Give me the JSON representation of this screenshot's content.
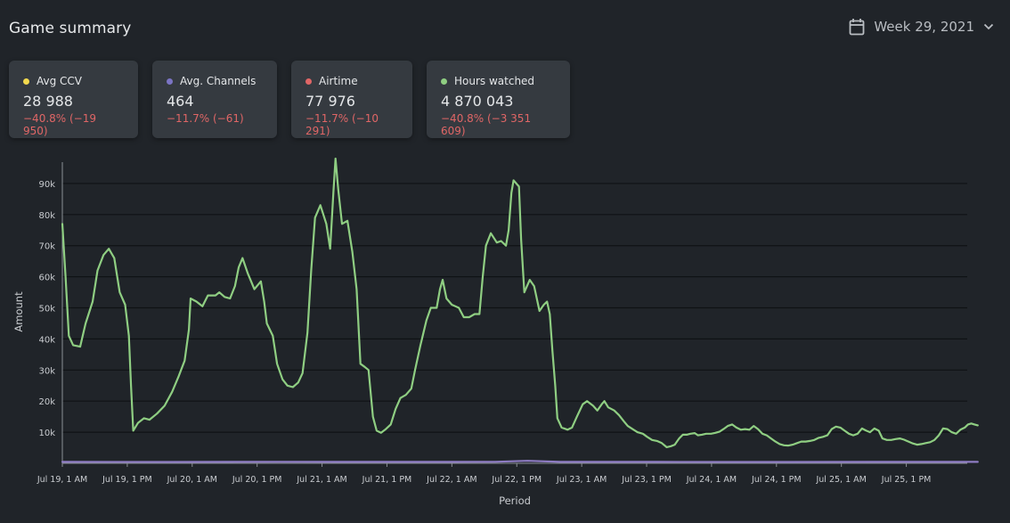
{
  "header": {
    "title": "Game summary",
    "week_label": "Week 29, 2021",
    "calendar_icon": "calendar-icon",
    "chevron_icon": "chevron-down-icon"
  },
  "cards": [
    {
      "label": "Avg CCV",
      "value": "28 988",
      "delta": "−40.8% (−19 950)",
      "dot_color": "#f2d94e"
    },
    {
      "label": "Avg. Channels",
      "value": "464",
      "delta": "−11.7% (−61)",
      "dot_color": "#7b74c4"
    },
    {
      "label": "Airtime",
      "value": "77 976",
      "delta": "−11.7% (−10 291)",
      "dot_color": "#e06666"
    },
    {
      "label": "Hours watched",
      "value": "4 870 043",
      "delta": "−40.8% (−3 351 609)",
      "dot_color": "#8fce82"
    }
  ],
  "colors": {
    "background": "#202429",
    "card": "#353a40",
    "negative": "#e06666",
    "line_hours": "#8fce82",
    "line_channels": "#8e7cc3",
    "grid": "#0f1215"
  },
  "chart_data": {
    "type": "line",
    "xlabel": "Period",
    "ylabel": "Amount",
    "ylim": [
      0,
      98000
    ],
    "yticks": [
      10000,
      20000,
      30000,
      40000,
      50000,
      60000,
      70000,
      80000,
      90000
    ],
    "ytick_labels": [
      "10k",
      "20k",
      "30k",
      "40k",
      "50k",
      "60k",
      "70k",
      "80k",
      "90k"
    ],
    "x_unit": "hour",
    "xlim": [
      0,
      168
    ],
    "xticks": [
      0,
      12,
      24,
      36,
      48,
      60,
      72,
      84,
      96,
      108,
      120,
      132,
      144,
      156
    ],
    "xtick_labels": [
      "Jul 19, 1 AM",
      "Jul 19, 1 PM",
      "Jul 20, 1 AM",
      "Jul 20, 1 PM",
      "Jul 21, 1 AM",
      "Jul 21, 1 PM",
      "Jul 22, 1 AM",
      "Jul 22, 1 PM",
      "Jul 23, 1 AM",
      "Jul 23, 1 PM",
      "Jul 24, 1 AM",
      "Jul 24, 1 PM",
      "Jul 25, 1 AM",
      "Jul 25, 1 PM"
    ],
    "grid": true,
    "series": [
      {
        "color": "#8fce82",
        "points": [
          [
            0,
            77000
          ],
          [
            0.6,
            60000
          ],
          [
            1.2,
            41000
          ],
          [
            2,
            38000
          ],
          [
            3.3,
            37500
          ],
          [
            4.3,
            45000
          ],
          [
            5.6,
            52000
          ],
          [
            6.5,
            62000
          ],
          [
            7.6,
            67000
          ],
          [
            8.6,
            69000
          ],
          [
            9.6,
            66000
          ],
          [
            10.6,
            55000
          ],
          [
            11.6,
            51000
          ],
          [
            12.3,
            41000
          ],
          [
            12.7,
            25000
          ],
          [
            13.1,
            10500
          ],
          [
            14,
            13000
          ],
          [
            15.1,
            14500
          ],
          [
            16.1,
            14000
          ],
          [
            17.5,
            16000
          ],
          [
            18.9,
            18500
          ],
          [
            20.3,
            23000
          ],
          [
            21.5,
            28000
          ],
          [
            22.6,
            33000
          ],
          [
            23.4,
            43000
          ],
          [
            23.7,
            53000
          ],
          [
            24.8,
            52000
          ],
          [
            25.9,
            50500
          ],
          [
            26.9,
            54000
          ],
          [
            28.3,
            54000
          ],
          [
            29,
            55000
          ],
          [
            30,
            53500
          ],
          [
            31,
            53000
          ],
          [
            31.9,
            57000
          ],
          [
            32.6,
            63000
          ],
          [
            33.3,
            66000
          ],
          [
            34.3,
            61000
          ],
          [
            35.5,
            56000
          ],
          [
            36.7,
            58500
          ],
          [
            37.3,
            52000
          ],
          [
            37.8,
            45000
          ],
          [
            38.9,
            41000
          ],
          [
            39.7,
            32000
          ],
          [
            40.7,
            27000
          ],
          [
            41.6,
            25000
          ],
          [
            42.6,
            24500
          ],
          [
            43.6,
            26000
          ],
          [
            44.4,
            29000
          ],
          [
            45.3,
            42000
          ],
          [
            46,
            62000
          ],
          [
            46.7,
            79000
          ],
          [
            47.7,
            83000
          ],
          [
            48.8,
            77000
          ],
          [
            49.5,
            69000
          ],
          [
            50.1,
            87000
          ],
          [
            50.5,
            98000
          ],
          [
            51,
            88000
          ],
          [
            51.7,
            77000
          ],
          [
            52.7,
            78000
          ],
          [
            53.6,
            68000
          ],
          [
            54.4,
            56000
          ],
          [
            55.1,
            32000
          ],
          [
            55.9,
            31000
          ],
          [
            56.6,
            30000
          ],
          [
            57.4,
            15000
          ],
          [
            58.1,
            10500
          ],
          [
            58.9,
            9800
          ],
          [
            59.8,
            11000
          ],
          [
            60.7,
            12500
          ],
          [
            61.6,
            17500
          ],
          [
            62.5,
            21000
          ],
          [
            63.5,
            22000
          ],
          [
            64.5,
            24000
          ],
          [
            65.2,
            30000
          ],
          [
            66.2,
            38000
          ],
          [
            67.3,
            46000
          ],
          [
            68.1,
            50000
          ],
          [
            69.2,
            50000
          ],
          [
            69.8,
            56000
          ],
          [
            70.3,
            59000
          ],
          [
            71,
            53000
          ],
          [
            72,
            51000
          ],
          [
            73.3,
            50000
          ],
          [
            74.2,
            47000
          ],
          [
            75.2,
            47000
          ],
          [
            76.2,
            48000
          ],
          [
            77.1,
            48000
          ],
          [
            77.7,
            60000
          ],
          [
            78.3,
            70000
          ],
          [
            79.2,
            74000
          ],
          [
            80.3,
            71000
          ],
          [
            81.1,
            71500
          ],
          [
            82,
            70000
          ],
          [
            82.5,
            75000
          ],
          [
            83,
            87000
          ],
          [
            83.4,
            91000
          ],
          [
            84.4,
            89000
          ],
          [
            84.8,
            72000
          ],
          [
            85.4,
            55000
          ],
          [
            86.4,
            59000
          ],
          [
            87.2,
            57000
          ],
          [
            88.2,
            49000
          ],
          [
            89,
            51000
          ],
          [
            89.6,
            52000
          ],
          [
            90.1,
            48000
          ],
          [
            90.6,
            36000
          ],
          [
            91.1,
            25000
          ],
          [
            91.5,
            14500
          ],
          [
            92.3,
            11500
          ],
          [
            93.4,
            10800
          ],
          [
            94.2,
            11500
          ],
          [
            95.1,
            15000
          ],
          [
            96.2,
            19000
          ],
          [
            97,
            20000
          ],
          [
            98.1,
            18500
          ],
          [
            98.9,
            17000
          ],
          [
            99.7,
            19000
          ],
          [
            100.2,
            20000
          ],
          [
            100.9,
            18000
          ],
          [
            102,
            17000
          ],
          [
            102.9,
            15500
          ],
          [
            103.8,
            13500
          ],
          [
            104.5,
            12000
          ],
          [
            105.4,
            11000
          ],
          [
            106.3,
            10000
          ],
          [
            107.3,
            9500
          ],
          [
            108.1,
            8500
          ],
          [
            109,
            7500
          ],
          [
            109.9,
            7200
          ],
          [
            110.8,
            6500
          ],
          [
            111.7,
            5200
          ],
          [
            112.5,
            5500
          ],
          [
            113.2,
            6000
          ],
          [
            114,
            8000
          ],
          [
            114.7,
            9200
          ],
          [
            115.4,
            9200
          ],
          [
            116.1,
            9500
          ],
          [
            116.9,
            9700
          ],
          [
            117.5,
            9000
          ],
          [
            118.2,
            9200
          ],
          [
            119,
            9500
          ],
          [
            119.9,
            9500
          ],
          [
            120.7,
            9800
          ],
          [
            121.5,
            10200
          ],
          [
            122.2,
            11000
          ],
          [
            123,
            12000
          ],
          [
            123.8,
            12500
          ],
          [
            124.6,
            11500
          ],
          [
            125.4,
            10800
          ],
          [
            126.2,
            11000
          ],
          [
            127,
            10800
          ],
          [
            127.8,
            12000
          ],
          [
            128.6,
            11000
          ],
          [
            129.4,
            9500
          ],
          [
            130.2,
            9000
          ],
          [
            131,
            8000
          ],
          [
            131.8,
            7000
          ],
          [
            132.6,
            6200
          ],
          [
            133.4,
            5800
          ],
          [
            134.2,
            5700
          ],
          [
            135,
            6000
          ],
          [
            135.8,
            6500
          ],
          [
            136.6,
            7000
          ],
          [
            137.4,
            7000
          ],
          [
            138.2,
            7200
          ],
          [
            139,
            7500
          ],
          [
            139.8,
            8200
          ],
          [
            140.6,
            8500
          ],
          [
            141.4,
            9000
          ],
          [
            142.2,
            11000
          ],
          [
            143,
            11800
          ],
          [
            143.8,
            11500
          ],
          [
            144.6,
            10500
          ],
          [
            145.4,
            9500
          ],
          [
            146.2,
            9000
          ],
          [
            147,
            9500
          ],
          [
            147.8,
            11200
          ],
          [
            148.6,
            10500
          ],
          [
            149.3,
            10000
          ],
          [
            150.1,
            11200
          ],
          [
            150.9,
            10500
          ],
          [
            151.6,
            8000
          ],
          [
            152.4,
            7500
          ],
          [
            153.2,
            7500
          ],
          [
            154,
            7800
          ],
          [
            154.8,
            8000
          ],
          [
            155.6,
            7600
          ],
          [
            156.4,
            7000
          ],
          [
            157.2,
            6400
          ],
          [
            158,
            6000
          ],
          [
            158.8,
            6200
          ],
          [
            159.6,
            6500
          ],
          [
            160.4,
            6800
          ],
          [
            161.2,
            7500
          ],
          [
            162,
            9000
          ],
          [
            162.8,
            11200
          ],
          [
            163.6,
            11000
          ],
          [
            164.4,
            10000
          ],
          [
            165.2,
            9500
          ],
          [
            166,
            10800
          ],
          [
            166.8,
            11500
          ],
          [
            167.4,
            12500
          ],
          [
            168,
            12800
          ],
          [
            168.6,
            12500
          ],
          [
            169.2,
            12200
          ]
        ]
      },
      {
        "color": "#8e7cc3",
        "points": [
          [
            0,
            450
          ],
          [
            20,
            440
          ],
          [
            40,
            480
          ],
          [
            60,
            470
          ],
          [
            80,
            500
          ],
          [
            86,
            800
          ],
          [
            92,
            460
          ],
          [
            110,
            450
          ],
          [
            130,
            440
          ],
          [
            150,
            460
          ],
          [
            169.2,
            450
          ]
        ]
      }
    ]
  }
}
